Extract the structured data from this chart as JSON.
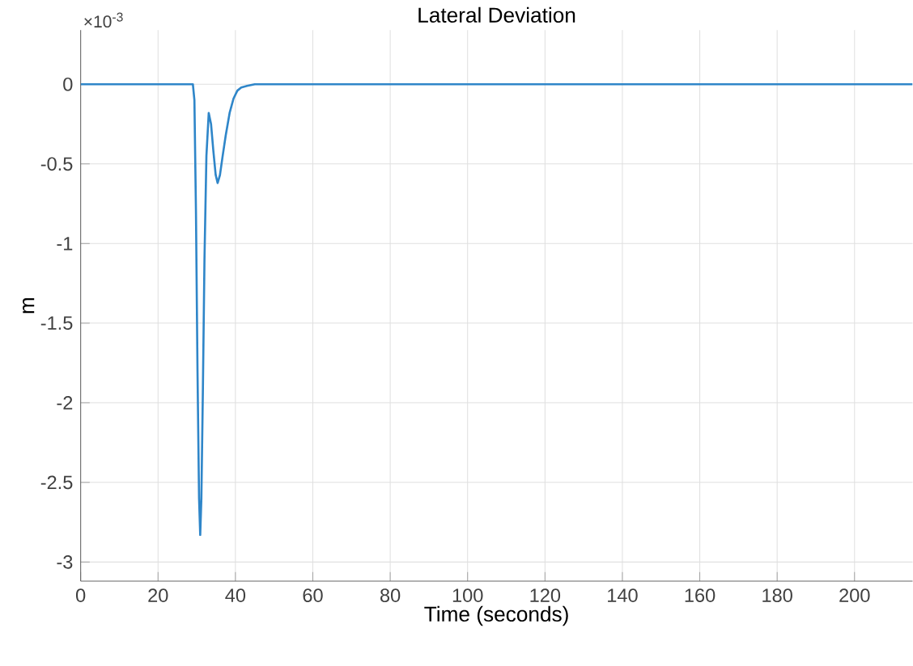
{
  "chart_data": {
    "type": "line",
    "title": "Lateral Deviation",
    "xlabel": "Time (seconds)",
    "ylabel": "m",
    "annotations": [
      "×10$^{-3}$"
    ],
    "x": [
      0,
      29.0,
      29.4,
      29.8,
      30.2,
      30.6,
      30.9,
      31.2,
      31.6,
      32.0,
      32.5,
      33.1,
      33.7,
      34.3,
      34.9,
      35.4,
      36.0,
      36.7,
      37.5,
      38.5,
      39.5,
      40.5,
      41.5,
      43,
      45,
      50,
      60,
      215
    ],
    "series": [
      {
        "color": "#2f86c9",
        "values": [
          0,
          0,
          -0.1,
          -0.8,
          -1.8,
          -2.6,
          -2.83,
          -2.6,
          -1.9,
          -1.1,
          -0.45,
          -0.18,
          -0.25,
          -0.42,
          -0.57,
          -0.62,
          -0.57,
          -0.45,
          -0.32,
          -0.18,
          -0.09,
          -0.04,
          -0.02,
          -0.01,
          0,
          0,
          0,
          0
        ]
      }
    ],
    "xlim": [
      0,
      215
    ],
    "ylim": [
      -3.12,
      0.34
    ],
    "xticks": [
      0,
      20,
      40,
      60,
      80,
      100,
      120,
      140,
      160,
      180,
      200
    ],
    "yticks": [
      {
        "value": 0,
        "label": "0"
      },
      {
        "value": -0.5,
        "label": "-0.5"
      },
      {
        "value": -1,
        "label": "-1"
      },
      {
        "value": -1.5,
        "label": "-1.5"
      },
      {
        "value": -2,
        "label": "-2"
      },
      {
        "value": -2.5,
        "label": "-2.5"
      },
      {
        "value": -3,
        "label": "-3"
      }
    ],
    "grid": true,
    "marker": "none",
    "line_style": "solid"
  }
}
